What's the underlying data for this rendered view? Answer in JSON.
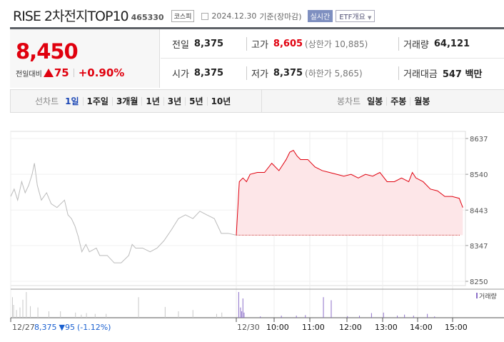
{
  "header": {
    "title": "RISE 2차전지TOP10",
    "code": "465330",
    "market": "코스피",
    "date": "2024.12.30",
    "basis": "기준(장마감)",
    "realtime": "실시간",
    "etf_menu": "ETF개요"
  },
  "quote": {
    "price": "8,450",
    "change_label": "전일대비",
    "change": "75",
    "change_pct": "+0.90%",
    "prev_label": "전일",
    "prev": "8,375",
    "open_label": "시가",
    "open": "8,375",
    "high_label": "고가",
    "high": "8,605",
    "upper_limit": "(상한가 10,885)",
    "low_label": "저가",
    "low": "8,375",
    "lower_limit": "(하한가 5,865)",
    "volume_label": "거래량",
    "volume": "64,121",
    "amount_label": "거래대금",
    "amount": "547 백만"
  },
  "line_tabs": {
    "label": "선차트",
    "items": [
      "1일",
      "1주일",
      "3개월",
      "1년",
      "3년",
      "5년",
      "10년"
    ],
    "active": 0
  },
  "candle_tabs": {
    "label": "봉차트",
    "items": [
      "일봉",
      "주봉",
      "월봉"
    ]
  },
  "colors": {
    "up": "#e0000e",
    "prev_line": "#bbbbbb",
    "volume_today": "#8c6fc9",
    "volume_prev": "#c8c8c8",
    "fill": "#fde6e8"
  },
  "chart_data": {
    "type": "line",
    "y_ticks": [
      8637,
      8540,
      8443,
      8347,
      8250
    ],
    "ylim": [
      8250,
      8637
    ],
    "base_price": 8375,
    "x_ticks": [
      "12/27",
      "12/30",
      "10:00",
      "11:00",
      "12:00",
      "13:00",
      "14:00",
      "15:00"
    ],
    "prev_summary": {
      "price": "8,375",
      "change": "▼95",
      "pct": "(-1.12%)"
    },
    "volume_legend": "거래량",
    "series": [
      {
        "name": "12/27",
        "minutes": [
          0,
          6,
          12,
          19,
          25,
          31,
          37,
          41,
          46,
          53,
          62,
          70,
          80,
          93,
          99,
          105,
          111,
          117,
          123,
          130,
          136,
          148,
          154,
          167,
          179,
          191,
          204,
          210,
          216,
          228,
          241,
          253,
          265,
          278,
          290,
          302,
          315,
          327,
          339,
          352,
          364,
          376,
          390
        ],
        "values": [
          8480,
          8500,
          8470,
          8520,
          8490,
          8510,
          8540,
          8570,
          8510,
          8470,
          8490,
          8460,
          8450,
          8470,
          8430,
          8420,
          8400,
          8370,
          8330,
          8350,
          8330,
          8340,
          8320,
          8320,
          8300,
          8300,
          8320,
          8350,
          8340,
          8340,
          8330,
          8340,
          8360,
          8390,
          8420,
          8430,
          8420,
          8440,
          8430,
          8420,
          8380,
          8380,
          8375
        ]
      },
      {
        "name": "12/30",
        "minutes": [
          0,
          5,
          11,
          17,
          23,
          35,
          47,
          59,
          71,
          83,
          89,
          95,
          101,
          107,
          119,
          131,
          143,
          155,
          167,
          179,
          191,
          203,
          215,
          227,
          239,
          251,
          263,
          275,
          287,
          293,
          299,
          311,
          323,
          335,
          347,
          359,
          371,
          377
        ],
        "values": [
          8375,
          8520,
          8530,
          8520,
          8540,
          8545,
          8545,
          8570,
          8550,
          8580,
          8600,
          8605,
          8590,
          8580,
          8580,
          8560,
          8550,
          8545,
          8540,
          8535,
          8540,
          8530,
          8540,
          8535,
          8545,
          8520,
          8520,
          8530,
          8520,
          8545,
          8530,
          8520,
          8500,
          8495,
          8480,
          8480,
          8475,
          8450
        ]
      }
    ],
    "volume": [
      {
        "name": "12/27",
        "minutes": [
          3,
          5,
          10,
          16,
          21,
          27,
          34,
          47,
          66,
          86,
          112,
          122,
          131,
          146,
          165,
          221,
          267,
          290,
          315,
          356,
          365
        ],
        "values": [
          80,
          50,
          30,
          40,
          70,
          100,
          45,
          40,
          25,
          25,
          20,
          12,
          18,
          15,
          15,
          80,
          42,
          25,
          30,
          15,
          20
        ]
      },
      {
        "name": "12/30",
        "minutes": [
          4,
          7,
          9,
          11,
          13,
          40,
          75,
          100,
          115,
          145,
          158,
          185,
          205,
          225,
          245,
          268,
          280,
          295,
          318,
          330
        ],
        "values": [
          100,
          40,
          25,
          75,
          20,
          5,
          8,
          8,
          10,
          80,
          68,
          6,
          8,
          18,
          20,
          8,
          12,
          8,
          15,
          5
        ]
      }
    ]
  }
}
